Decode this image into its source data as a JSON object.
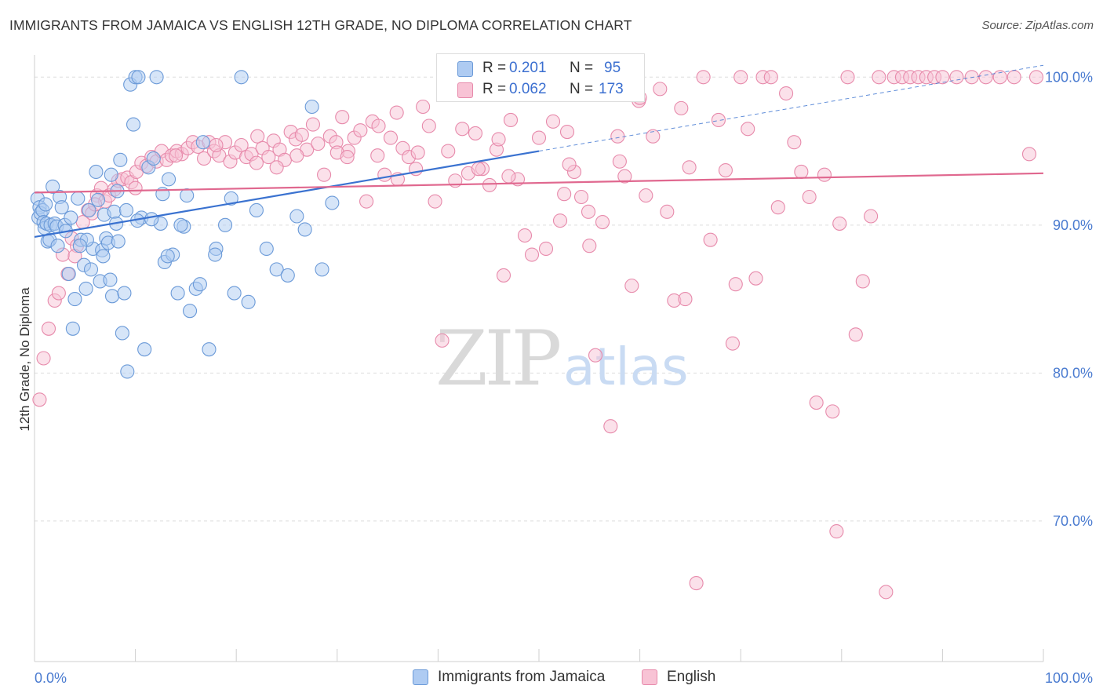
{
  "header": {
    "title": "IMMIGRANTS FROM JAMAICA VS ENGLISH 12TH GRADE, NO DIPLOMA CORRELATION CHART",
    "source": "Source: ZipAtlas.com"
  },
  "watermark": {
    "zip": "ZIP",
    "atlas": "atlas"
  },
  "stats": {
    "r_label": "R =",
    "n_label": "N =",
    "rows": [
      {
        "r": "0.201",
        "n": "95"
      },
      {
        "r": "0.062",
        "n": "173"
      }
    ]
  },
  "colors": {
    "blue_fill": "#aecbf2",
    "blue_stroke": "#6b9ad8",
    "blue_line": "#3a72d0",
    "pink_fill": "#f8c3d5",
    "pink_stroke": "#e78aab",
    "pink_line": "#e0688f",
    "tick_label": "#4a7bd0",
    "grid": "#dddddd"
  },
  "chart_data": {
    "type": "scatter",
    "title": "IMMIGRANTS FROM JAMAICA VS ENGLISH 12TH GRADE, NO DIPLOMA CORRELATION CHART",
    "xlabel": "",
    "ylabel": "12th Grade, No Diploma",
    "xlim": [
      0,
      100
    ],
    "ylim": [
      60.5,
      101.5
    ],
    "x_tick_labels": [
      "0.0%",
      "100.0%"
    ],
    "y_ticks": [
      70,
      80,
      90,
      100
    ],
    "y_tick_labels": [
      "70.0%",
      "80.0%",
      "90.0%",
      "100.0%"
    ],
    "grid": "horizontal dashed",
    "legend_position": "bottom-center",
    "series": [
      {
        "name": "Immigrants from Jamaica",
        "R": 0.201,
        "N": 95,
        "trend": {
          "x": [
            0,
            50
          ],
          "y": [
            89.2,
            95.0
          ]
        },
        "trend_extension": {
          "x": [
            50,
            100
          ],
          "y": [
            95.0,
            100.8
          ]
        },
        "points": [
          [
            0.3,
            91.8
          ],
          [
            0.4,
            90.5
          ],
          [
            0.5,
            91.2
          ],
          [
            0.6,
            90.8
          ],
          [
            0.8,
            91.0
          ],
          [
            0.9,
            90.2
          ],
          [
            1.0,
            89.8
          ],
          [
            1.2,
            90.1
          ],
          [
            1.3,
            88.9
          ],
          [
            1.5,
            89.0
          ],
          [
            1.6,
            90.0
          ],
          [
            1.8,
            92.6
          ],
          [
            2.0,
            90.1
          ],
          [
            2.2,
            89.9
          ],
          [
            2.5,
            91.9
          ],
          [
            2.7,
            91.2
          ],
          [
            3.0,
            90.0
          ],
          [
            3.4,
            86.7
          ],
          [
            3.6,
            90.5
          ],
          [
            3.8,
            83.0
          ],
          [
            4.0,
            85.0
          ],
          [
            4.3,
            91.8
          ],
          [
            4.6,
            89.0
          ],
          [
            4.9,
            87.3
          ],
          [
            5.1,
            85.7
          ],
          [
            5.4,
            91.0
          ],
          [
            5.6,
            87.0
          ],
          [
            5.8,
            88.4
          ],
          [
            6.1,
            93.6
          ],
          [
            6.3,
            91.7
          ],
          [
            6.5,
            86.2
          ],
          [
            6.7,
            88.3
          ],
          [
            6.9,
            90.7
          ],
          [
            7.1,
            89.1
          ],
          [
            7.3,
            88.8
          ],
          [
            7.5,
            86.3
          ],
          [
            7.7,
            85.2
          ],
          [
            7.9,
            90.9
          ],
          [
            8.1,
            90.1
          ],
          [
            8.3,
            88.9
          ],
          [
            8.5,
            94.4
          ],
          [
            8.7,
            82.7
          ],
          [
            8.9,
            85.4
          ],
          [
            9.2,
            80.1
          ],
          [
            9.5,
            99.5
          ],
          [
            9.8,
            96.8
          ],
          [
            10.0,
            100
          ],
          [
            10.3,
            100
          ],
          [
            10.6,
            90.5
          ],
          [
            10.9,
            81.6
          ],
          [
            11.3,
            93.9
          ],
          [
            11.8,
            94.5
          ],
          [
            12.1,
            100
          ],
          [
            12.5,
            90.1
          ],
          [
            12.9,
            87.5
          ],
          [
            13.3,
            93.1
          ],
          [
            13.7,
            88.0
          ],
          [
            14.2,
            85.4
          ],
          [
            14.8,
            89.9
          ],
          [
            15.4,
            84.2
          ],
          [
            16.0,
            85.7
          ],
          [
            16.7,
            95.6
          ],
          [
            17.3,
            81.6
          ],
          [
            18.0,
            88.4
          ],
          [
            18.9,
            90.0
          ],
          [
            19.8,
            85.4
          ],
          [
            20.5,
            100
          ],
          [
            21.2,
            84.8
          ],
          [
            22.0,
            91.0
          ],
          [
            23.0,
            88.4
          ],
          [
            24.0,
            87.0
          ],
          [
            25.1,
            86.6
          ],
          [
            26.0,
            90.6
          ],
          [
            26.8,
            89.7
          ],
          [
            27.5,
            98.0
          ],
          [
            28.5,
            87.0
          ],
          [
            29.5,
            91.5
          ],
          [
            3.1,
            89.6
          ],
          [
            5.2,
            89.0
          ],
          [
            7.6,
            93.4
          ],
          [
            10.2,
            90.3
          ],
          [
            11.6,
            90.4
          ],
          [
            12.7,
            92.1
          ],
          [
            14.5,
            90.0
          ],
          [
            16.4,
            86.0
          ],
          [
            1.1,
            91.4
          ],
          [
            2.3,
            88.6
          ],
          [
            4.5,
            88.6
          ],
          [
            6.8,
            87.9
          ],
          [
            8.2,
            92.3
          ],
          [
            9.1,
            91.0
          ],
          [
            13.2,
            87.9
          ],
          [
            15.1,
            92.0
          ],
          [
            17.9,
            88.0
          ],
          [
            19.5,
            91.8
          ]
        ]
      },
      {
        "name": "English",
        "R": 0.062,
        "N": 173,
        "trend": {
          "x": [
            0,
            100
          ],
          "y": [
            92.2,
            93.5
          ]
        },
        "points": [
          [
            0.5,
            78.2
          ],
          [
            0.9,
            81.0
          ],
          [
            1.4,
            83.0
          ],
          [
            2.0,
            84.9
          ],
          [
            2.4,
            85.4
          ],
          [
            2.8,
            88.0
          ],
          [
            3.3,
            86.7
          ],
          [
            3.7,
            89.1
          ],
          [
            4.2,
            88.6
          ],
          [
            4.8,
            90.2
          ],
          [
            5.3,
            91.0
          ],
          [
            5.7,
            90.8
          ],
          [
            6.2,
            92.0
          ],
          [
            6.6,
            92.5
          ],
          [
            7.0,
            91.6
          ],
          [
            7.4,
            92.0
          ],
          [
            7.9,
            92.4
          ],
          [
            8.3,
            93.0
          ],
          [
            8.7,
            93.1
          ],
          [
            9.2,
            93.2
          ],
          [
            9.6,
            92.9
          ],
          [
            10.1,
            93.6
          ],
          [
            10.6,
            94.2
          ],
          [
            11.1,
            94.0
          ],
          [
            11.6,
            94.6
          ],
          [
            12.1,
            94.3
          ],
          [
            12.6,
            95.0
          ],
          [
            13.1,
            94.4
          ],
          [
            13.6,
            94.7
          ],
          [
            14.1,
            95.0
          ],
          [
            14.6,
            94.8
          ],
          [
            15.2,
            95.2
          ],
          [
            15.7,
            95.6
          ],
          [
            16.2,
            95.3
          ],
          [
            16.8,
            94.5
          ],
          [
            17.3,
            95.6
          ],
          [
            17.8,
            95.0
          ],
          [
            18.3,
            94.7
          ],
          [
            18.9,
            95.6
          ],
          [
            19.4,
            94.3
          ],
          [
            19.9,
            94.9
          ],
          [
            20.5,
            95.4
          ],
          [
            21.0,
            94.6
          ],
          [
            21.5,
            94.8
          ],
          [
            22.1,
            96.0
          ],
          [
            22.6,
            95.2
          ],
          [
            23.2,
            94.6
          ],
          [
            23.7,
            95.7
          ],
          [
            24.3,
            95.1
          ],
          [
            24.8,
            94.4
          ],
          [
            25.4,
            96.3
          ],
          [
            25.9,
            95.8
          ],
          [
            26.5,
            96.1
          ],
          [
            27.0,
            95.1
          ],
          [
            27.6,
            96.8
          ],
          [
            28.1,
            95.5
          ],
          [
            28.7,
            93.4
          ],
          [
            29.3,
            96.0
          ],
          [
            29.9,
            95.6
          ],
          [
            30.5,
            97.3
          ],
          [
            31.1,
            95.0
          ],
          [
            31.7,
            95.9
          ],
          [
            32.3,
            96.4
          ],
          [
            32.9,
            91.6
          ],
          [
            33.5,
            97.0
          ],
          [
            34.1,
            96.7
          ],
          [
            34.7,
            93.4
          ],
          [
            35.3,
            95.9
          ],
          [
            35.9,
            97.6
          ],
          [
            36.5,
            95.2
          ],
          [
            37.1,
            94.6
          ],
          [
            37.8,
            93.8
          ],
          [
            38.5,
            98.0
          ],
          [
            39.1,
            96.7
          ],
          [
            39.7,
            91.6
          ],
          [
            40.4,
            82.2
          ],
          [
            41.0,
            95.0
          ],
          [
            41.7,
            93.0
          ],
          [
            42.4,
            96.5
          ],
          [
            43.0,
            93.5
          ],
          [
            43.7,
            96.2
          ],
          [
            44.4,
            93.8
          ],
          [
            45.1,
            92.7
          ],
          [
            45.8,
            95.1
          ],
          [
            46.5,
            86.6
          ],
          [
            47.2,
            97.1
          ],
          [
            47.9,
            93.1
          ],
          [
            48.6,
            89.3
          ],
          [
            49.3,
            88.0
          ],
          [
            50.0,
            95.9
          ],
          [
            50.7,
            88.4
          ],
          [
            51.4,
            97.0
          ],
          [
            52.1,
            90.3
          ],
          [
            52.8,
            96.3
          ],
          [
            53.5,
            93.6
          ],
          [
            54.2,
            91.9
          ],
          [
            54.9,
            90.9
          ],
          [
            55.6,
            81.2
          ],
          [
            56.3,
            90.2
          ],
          [
            57.1,
            76.4
          ],
          [
            57.8,
            96.0
          ],
          [
            58.5,
            93.3
          ],
          [
            59.2,
            85.9
          ],
          [
            59.9,
            98.4
          ],
          [
            60.6,
            92.0
          ],
          [
            61.3,
            96.0
          ],
          [
            62.0,
            99.2
          ],
          [
            62.7,
            90.9
          ],
          [
            63.4,
            84.9
          ],
          [
            64.1,
            97.9
          ],
          [
            64.9,
            93.9
          ],
          [
            65.6,
            65.8
          ],
          [
            66.3,
            100
          ],
          [
            67.0,
            89.0
          ],
          [
            67.8,
            97.1
          ],
          [
            68.5,
            93.7
          ],
          [
            69.2,
            82.0
          ],
          [
            70.0,
            100
          ],
          [
            70.7,
            96.5
          ],
          [
            71.5,
            86.4
          ],
          [
            72.2,
            100
          ],
          [
            73.0,
            100
          ],
          [
            73.7,
            91.2
          ],
          [
            74.5,
            98.9
          ],
          [
            75.3,
            95.6
          ],
          [
            76.0,
            93.6
          ],
          [
            76.8,
            91.9
          ],
          [
            77.5,
            78.0
          ],
          [
            78.3,
            93.4
          ],
          [
            79.1,
            77.4
          ],
          [
            79.8,
            90.1
          ],
          [
            80.6,
            100
          ],
          [
            81.4,
            82.6
          ],
          [
            82.1,
            86.2
          ],
          [
            82.9,
            90.6
          ],
          [
            83.7,
            100
          ],
          [
            84.4,
            65.2
          ],
          [
            85.2,
            100
          ],
          [
            86.0,
            100
          ],
          [
            86.8,
            100
          ],
          [
            87.6,
            100
          ],
          [
            88.4,
            100
          ],
          [
            89.2,
            100
          ],
          [
            90.0,
            100
          ],
          [
            91.4,
            100
          ],
          [
            92.9,
            100
          ],
          [
            94.3,
            100
          ],
          [
            95.7,
            100
          ],
          [
            97.1,
            100
          ],
          [
            98.6,
            94.8
          ],
          [
            99.3,
            100
          ],
          [
            60.0,
            98.6
          ],
          [
            58.0,
            94.3
          ],
          [
            53.0,
            94.1
          ],
          [
            47.0,
            93.3
          ],
          [
            44.0,
            93.8
          ],
          [
            38.0,
            94.9
          ],
          [
            34.0,
            94.7
          ],
          [
            30.0,
            94.9
          ],
          [
            26.0,
            94.7
          ],
          [
            22.0,
            94.2
          ],
          [
            79.5,
            69.3
          ],
          [
            69.5,
            86.0
          ],
          [
            64.5,
            85.0
          ],
          [
            55.0,
            88.6
          ],
          [
            46.0,
            95.8
          ],
          [
            36.0,
            93.1
          ],
          [
            31.0,
            94.6
          ],
          [
            24.0,
            93.9
          ],
          [
            18.0,
            95.4
          ],
          [
            14.0,
            94.7
          ],
          [
            10.0,
            92.5
          ],
          [
            6.0,
            91.4
          ],
          [
            4.0,
            87.9
          ],
          [
            52.5,
            92.1
          ],
          [
            58.8,
            100
          ]
        ]
      }
    ]
  }
}
